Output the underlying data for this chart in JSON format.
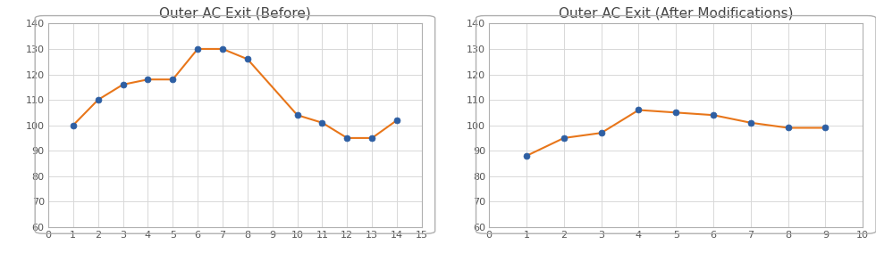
{
  "left_title": "Outer AC Exit (Before)",
  "right_title": "Outer AC Exit (After Modifications)",
  "left_x": [
    1,
    2,
    3,
    4,
    5,
    6,
    7,
    8,
    10,
    11,
    12,
    13,
    14
  ],
  "left_y": [
    100,
    110,
    116,
    118,
    118,
    130,
    130,
    126,
    104,
    101,
    95,
    95,
    102
  ],
  "right_x": [
    1,
    2,
    3,
    4,
    5,
    6,
    7,
    8,
    9
  ],
  "right_y": [
    88,
    95,
    97,
    106,
    105,
    104,
    101,
    99,
    99
  ],
  "left_xlim": [
    0,
    15
  ],
  "right_xlim": [
    0,
    10
  ],
  "ylim": [
    60,
    140
  ],
  "yticks": [
    60,
    70,
    80,
    90,
    100,
    110,
    120,
    130,
    140
  ],
  "left_xticks": [
    0,
    1,
    2,
    3,
    4,
    5,
    6,
    7,
    8,
    9,
    10,
    11,
    12,
    13,
    14,
    15
  ],
  "right_xticks": [
    0,
    1,
    2,
    3,
    4,
    5,
    6,
    7,
    8,
    9,
    10
  ],
  "line_color": "#E8761A",
  "marker_color": "#2E5FA3",
  "marker": "o",
  "marker_size": 5,
  "line_width": 1.5,
  "title_fontsize": 11,
  "tick_fontsize": 8,
  "bg_color": "#ffffff",
  "plot_bg_color": "#ffffff",
  "grid_color": "#d8d8d8",
  "spine_color": "#aaaaaa",
  "border_color": "#b0b0b0",
  "tick_color": "#555555",
  "title_color": "#444444"
}
